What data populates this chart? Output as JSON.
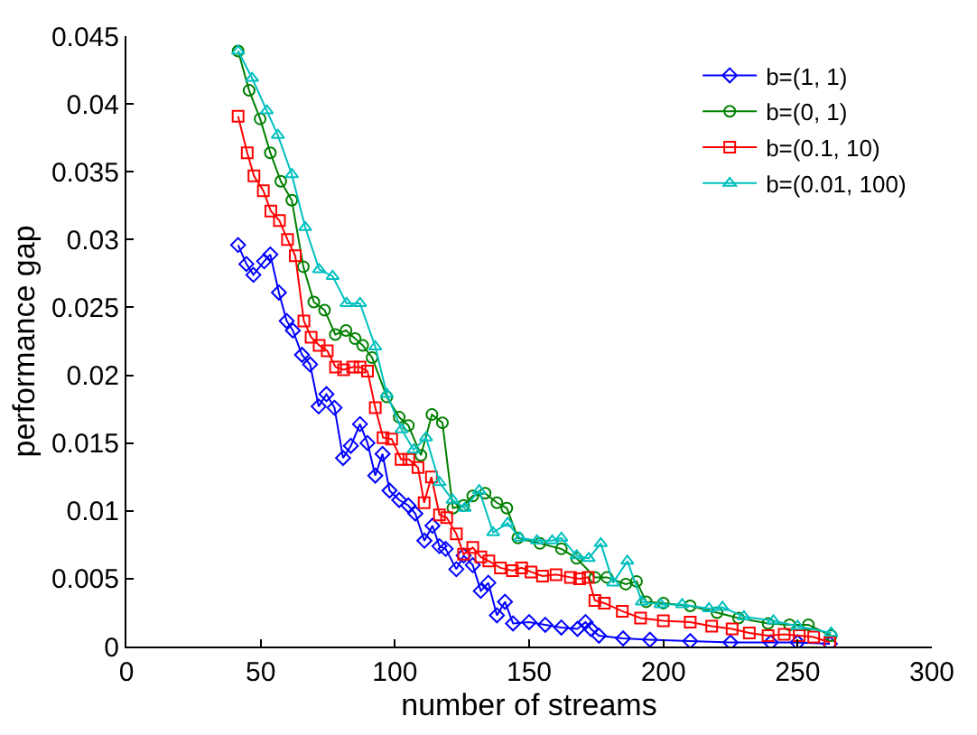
{
  "chart_data": {
    "type": "line",
    "xlabel": "number of streams",
    "ylabel": "performance gap",
    "xlim": [
      0,
      300
    ],
    "xticks": [
      0,
      50,
      100,
      150,
      200,
      250,
      300
    ],
    "ylim": [
      0,
      0.045
    ],
    "yticks": [
      0,
      0.005,
      0.01,
      0.015,
      0.02,
      0.025,
      0.03,
      0.035,
      0.04,
      0.045
    ],
    "grid": false,
    "legend": "top right",
    "line_style": "solid",
    "series": [
      {
        "name": "b=(1, 1)",
        "color": "#0000ff",
        "marker": "diamond",
        "x": [
          41.6,
          44.7,
          47.3,
          51.3,
          53.6,
          56.8,
          59.7,
          62,
          65.4,
          68.4,
          71.6,
          74.5,
          77.5,
          80.7,
          83.6,
          87,
          89.8,
          92.7,
          95.4,
          98,
          101.6,
          105,
          107.6,
          111,
          114,
          116.6,
          118.9,
          122.9,
          125.6,
          129,
          132,
          134.8,
          138,
          141,
          144,
          150,
          156,
          162,
          168,
          171,
          173,
          176,
          185,
          195,
          210,
          225,
          240,
          250,
          262
        ],
        "values": [
          0.0296,
          0.0282,
          0.0274,
          0.0284,
          0.0289,
          0.0261,
          0.024,
          0.0233,
          0.0215,
          0.0208,
          0.0177,
          0.0186,
          0.0176,
          0.0139,
          0.0148,
          0.0164,
          0.015,
          0.0126,
          0.0142,
          0.0115,
          0.0108,
          0.0104,
          0.0098,
          0.0078,
          0.0089,
          0.0074,
          0.0072,
          0.0057,
          0.0067,
          0.006,
          0.0041,
          0.0047,
          0.0023,
          0.0033,
          0.0017,
          0.0018,
          0.0016,
          0.0014,
          0.0013,
          0.0018,
          0.0013,
          0.0008,
          0.0006,
          0.0005,
          0.0004,
          0.0003,
          0.0003,
          0.0003,
          0.0002
        ]
      },
      {
        "name": "b=(0, 1)",
        "color": "#008000",
        "marker": "circle",
        "x": [
          41.6,
          45.7,
          49.8,
          53.6,
          57.5,
          61.6,
          65.9,
          69.8,
          73.8,
          77.8,
          81.8,
          85.2,
          88,
          91.5,
          97,
          101.6,
          105,
          109.7,
          113.8,
          117.7,
          121.6,
          125.6,
          129,
          133.6,
          138,
          141.7,
          145.8,
          154,
          162,
          167.7,
          174.5,
          179,
          186,
          190,
          193.6,
          200,
          210,
          220,
          228,
          239,
          247,
          254,
          262.5
        ],
        "values": [
          0.0439,
          0.041,
          0.0389,
          0.0364,
          0.0343,
          0.0329,
          0.028,
          0.0254,
          0.0248,
          0.023,
          0.0233,
          0.0227,
          0.0222,
          0.0213,
          0.0184,
          0.0169,
          0.0163,
          0.0141,
          0.0171,
          0.0165,
          0.0102,
          0.0104,
          0.0111,
          0.0113,
          0.0106,
          0.0102,
          0.008,
          0.0076,
          0.0072,
          0.0065,
          0.0051,
          0.0051,
          0.0046,
          0.0048,
          0.0033,
          0.0032,
          0.003,
          0.0025,
          0.0021,
          0.0017,
          0.0016,
          0.0016,
          0.0008
        ]
      },
      {
        "name": "b=(0.1, 10)",
        "color": "#ff0000",
        "marker": "square",
        "x": [
          41.6,
          45,
          47.5,
          51,
          53.8,
          57,
          60,
          62.9,
          66.1,
          68.8,
          71.8,
          74.8,
          77.9,
          80.9,
          84.3,
          87,
          89.8,
          92.7,
          95.6,
          98.8,
          102.3,
          105.2,
          108.6,
          110.9,
          113.6,
          116.6,
          119.3,
          122.9,
          125.6,
          129,
          132,
          135,
          139.3,
          143.8,
          147.2,
          150.7,
          155,
          160,
          165.4,
          168.8,
          172,
          174.5,
          178,
          184.7,
          191.5,
          200,
          210,
          218,
          225.6,
          232,
          239,
          245,
          250.6,
          256,
          262
        ],
        "values": [
          0.0391,
          0.0364,
          0.0347,
          0.0336,
          0.0321,
          0.0314,
          0.03,
          0.0288,
          0.024,
          0.0228,
          0.0222,
          0.0218,
          0.0206,
          0.0204,
          0.0206,
          0.0206,
          0.0203,
          0.0176,
          0.0154,
          0.0153,
          0.0138,
          0.0138,
          0.0132,
          0.0106,
          0.0125,
          0.0097,
          0.0095,
          0.0083,
          0.0068,
          0.0073,
          0.0066,
          0.0063,
          0.0058,
          0.0056,
          0.0058,
          0.0055,
          0.0052,
          0.0053,
          0.0051,
          0.005,
          0.0051,
          0.0034,
          0.0032,
          0.0026,
          0.0021,
          0.0019,
          0.0018,
          0.0015,
          0.0013,
          0.001,
          0.0008,
          0.0009,
          0.0008,
          0.0007,
          0.0003
        ]
      },
      {
        "name": "b=(0.01, 100)",
        "color": "#00bfbf",
        "marker": "triangle",
        "x": [
          41.6,
          46.8,
          52.3,
          56.4,
          61.6,
          66.6,
          71.8,
          76.8,
          82,
          87,
          92.7,
          97,
          102.5,
          107,
          111.6,
          116.6,
          121.5,
          126,
          131.4,
          136.6,
          142,
          146.6,
          152.9,
          158.6,
          162,
          167.7,
          172.2,
          176.7,
          181.3,
          186.6,
          192,
          199,
          207,
          217,
          222,
          230,
          241,
          250,
          262.5
        ],
        "values": [
          0.0439,
          0.0419,
          0.0395,
          0.0377,
          0.0348,
          0.0309,
          0.0278,
          0.0273,
          0.0253,
          0.0253,
          0.0221,
          0.0186,
          0.016,
          0.0145,
          0.0154,
          0.0121,
          0.0108,
          0.0102,
          0.0115,
          0.0084,
          0.0091,
          0.008,
          0.0078,
          0.0078,
          0.008,
          0.0067,
          0.0065,
          0.0076,
          0.0047,
          0.0063,
          0.0033,
          0.0031,
          0.0031,
          0.0028,
          0.0029,
          0.0022,
          0.0019,
          0.0015,
          0.001
        ]
      }
    ]
  }
}
